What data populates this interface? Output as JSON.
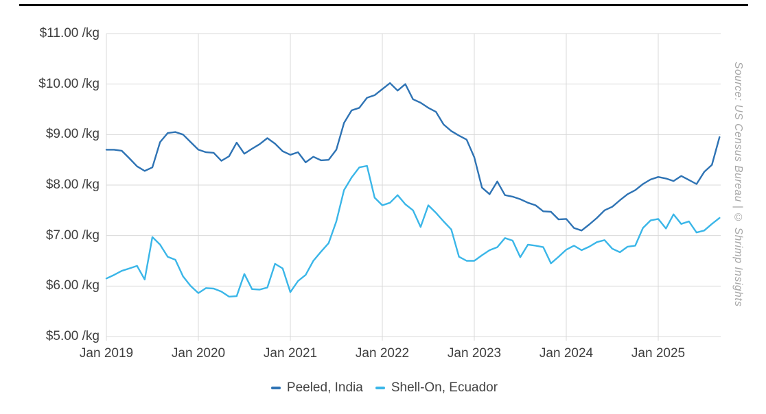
{
  "source_note": "Source: US Census Bureau | © Shrimp Insights",
  "legend": {
    "items": [
      {
        "label": "Peeled, India",
        "color": "#2e73b4"
      },
      {
        "label": "Shell-On, Ecuador",
        "color": "#3ab6e8"
      }
    ]
  },
  "chart_data": {
    "type": "line",
    "title": "",
    "xlabel": "",
    "ylabel": "",
    "x_interval": "monthly",
    "x_start": "Jan 2019",
    "x_end": "Sep 2025",
    "x_tick_labels": [
      "Jan 2019",
      "Jan 2020",
      "Jan 2021",
      "Jan 2022",
      "Jan 2023",
      "Jan 2024",
      "Jan 2025"
    ],
    "y_ticks": [
      5,
      6,
      7,
      8,
      9,
      10,
      11
    ],
    "y_tick_labels": [
      "$5.00 /kg",
      "$6.00 /kg",
      "$7.00 /kg",
      "$8.00 /kg",
      "$9.00 /kg",
      "$10.00 /kg",
      "$11.00 /kg"
    ],
    "ylim": [
      5,
      11
    ],
    "grid": true,
    "legend_position": "bottom",
    "series": [
      {
        "name": "Peeled, India",
        "color": "#2e73b4",
        "values": [
          8.7,
          8.7,
          8.68,
          8.53,
          8.37,
          8.28,
          8.35,
          8.85,
          9.03,
          9.05,
          9.0,
          8.85,
          8.7,
          8.65,
          8.64,
          8.48,
          8.57,
          8.84,
          8.62,
          8.72,
          8.81,
          8.93,
          8.82,
          8.67,
          8.6,
          8.65,
          8.45,
          8.56,
          8.49,
          8.5,
          8.7,
          9.23,
          9.48,
          9.53,
          9.73,
          9.78,
          9.9,
          10.02,
          9.87,
          10.0,
          9.7,
          9.63,
          9.53,
          9.45,
          9.2,
          9.07,
          8.98,
          8.9,
          8.55,
          7.95,
          7.82,
          8.07,
          7.8,
          7.77,
          7.72,
          7.65,
          7.6,
          7.48,
          7.47,
          7.32,
          7.33,
          7.15,
          7.1,
          7.22,
          7.35,
          7.5,
          7.57,
          7.7,
          7.82,
          7.9,
          8.02,
          8.11,
          8.16,
          8.13,
          8.08,
          8.18,
          8.1,
          8.02,
          8.26,
          8.4,
          8.95
        ]
      },
      {
        "name": "Shell-On, Ecuador",
        "color": "#3ab6e8",
        "values": [
          6.15,
          6.22,
          6.3,
          6.35,
          6.4,
          6.13,
          6.97,
          6.82,
          6.58,
          6.52,
          6.19,
          6.0,
          5.86,
          5.96,
          5.95,
          5.89,
          5.79,
          5.8,
          6.24,
          5.94,
          5.93,
          5.97,
          6.44,
          6.35,
          5.88,
          6.1,
          6.22,
          6.5,
          6.68,
          6.85,
          7.28,
          7.9,
          8.15,
          8.35,
          8.38,
          7.75,
          7.6,
          7.65,
          7.8,
          7.62,
          7.5,
          7.17,
          7.6,
          7.45,
          7.28,
          7.12,
          6.58,
          6.5,
          6.5,
          6.61,
          6.71,
          6.77,
          6.95,
          6.9,
          6.57,
          6.82,
          6.8,
          6.77,
          6.45,
          6.58,
          6.72,
          6.8,
          6.71,
          6.78,
          6.87,
          6.91,
          6.74,
          6.67,
          6.78,
          6.8,
          7.15,
          7.3,
          7.33,
          7.14,
          7.42,
          7.23,
          7.28,
          7.06,
          7.1,
          7.23,
          7.35
        ]
      }
    ]
  }
}
